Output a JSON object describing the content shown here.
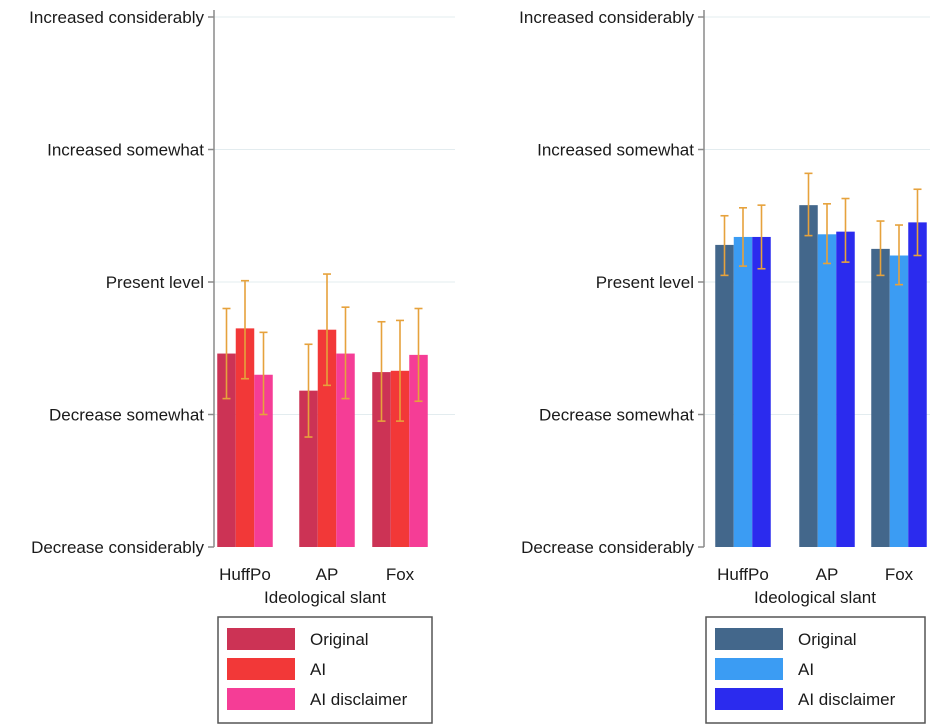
{
  "chart_data": [
    {
      "type": "bar",
      "categories": [
        "HuffPo",
        "AP",
        "Fox"
      ],
      "xlabel": "Ideological slant",
      "ylabel": "",
      "ylim": [
        1,
        5
      ],
      "yticks": [
        {
          "value": 1,
          "label": "Decrease considerably"
        },
        {
          "value": 2,
          "label": "Decrease somewhat"
        },
        {
          "value": 3,
          "label": "Present level"
        },
        {
          "value": 4,
          "label": "Increased somewhat"
        },
        {
          "value": 5,
          "label": "Increased considerably"
        }
      ],
      "grid": true,
      "error_bar_color": "#e6a23c",
      "series": [
        {
          "name": "Original",
          "color": "#cc3355",
          "values": [
            2.46,
            2.18,
            2.32
          ],
          "ci_low": [
            2.12,
            1.83,
            1.95
          ],
          "ci_high": [
            2.8,
            2.53,
            2.7
          ]
        },
        {
          "name": "AI",
          "color": "#f23838",
          "values": [
            2.65,
            2.64,
            2.33
          ],
          "ci_low": [
            2.27,
            2.22,
            1.95
          ],
          "ci_high": [
            3.01,
            3.06,
            2.71
          ]
        },
        {
          "name": "AI disclaimer",
          "color": "#f53d96",
          "values": [
            2.3,
            2.46,
            2.45
          ],
          "ci_low": [
            2.0,
            2.12,
            2.1
          ],
          "ci_high": [
            2.62,
            2.81,
            2.8
          ]
        }
      ]
    },
    {
      "type": "bar",
      "categories": [
        "HuffPo",
        "AP",
        "Fox"
      ],
      "xlabel": "Ideological slant",
      "ylabel": "",
      "ylim": [
        1,
        5
      ],
      "yticks": [
        {
          "value": 1,
          "label": "Decrease considerably"
        },
        {
          "value": 2,
          "label": "Decrease somewhat"
        },
        {
          "value": 3,
          "label": "Present level"
        },
        {
          "value": 4,
          "label": "Increased somewhat"
        },
        {
          "value": 5,
          "label": "Increased considerably"
        }
      ],
      "grid": true,
      "error_bar_color": "#e6a23c",
      "series": [
        {
          "name": "Original",
          "color": "#43678b",
          "values": [
            3.28,
            3.58,
            3.25
          ],
          "ci_low": [
            3.05,
            3.35,
            3.05
          ],
          "ci_high": [
            3.5,
            3.82,
            3.46
          ]
        },
        {
          "name": "AI",
          "color": "#3b9cf3",
          "values": [
            3.34,
            3.36,
            3.2
          ],
          "ci_low": [
            3.12,
            3.14,
            2.98
          ],
          "ci_high": [
            3.56,
            3.59,
            3.43
          ]
        },
        {
          "name": "AI disclaimer",
          "color": "#2b2bee",
          "values": [
            3.34,
            3.38,
            3.45
          ],
          "ci_low": [
            3.1,
            3.15,
            3.2
          ],
          "ci_high": [
            3.58,
            3.63,
            3.7
          ]
        }
      ]
    }
  ]
}
